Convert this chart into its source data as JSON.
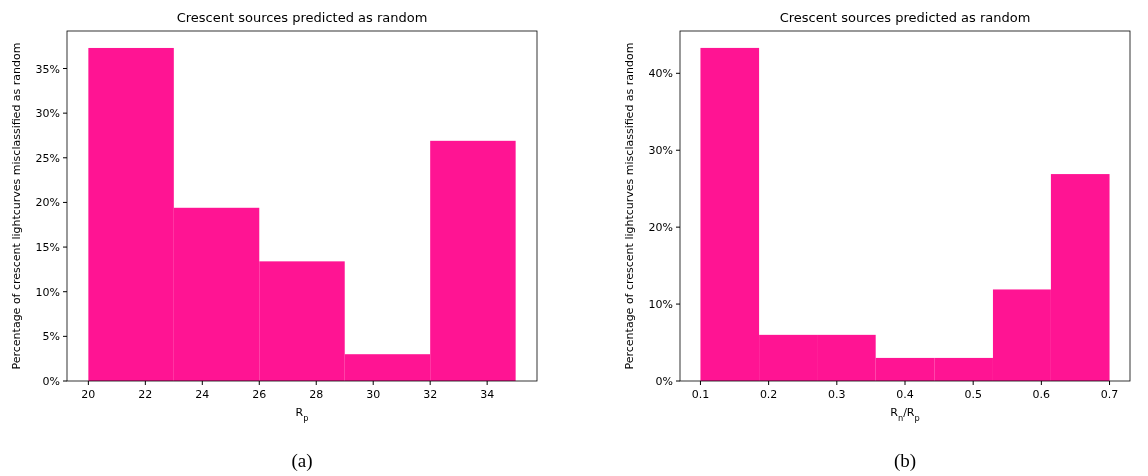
{
  "chart_data": [
    {
      "type": "histogram",
      "title": "Crescent sources predicted as random",
      "xlabel": "R$_{p}$",
      "ylabel": "Percentage of crescent lightcurves misclassified as random",
      "bins": [
        20,
        23,
        26,
        29,
        32,
        35
      ],
      "values": [
        37.3,
        19.4,
        13.4,
        3.0,
        26.9
      ],
      "color": "#ff1493",
      "xlim": [
        19.25,
        35.75
      ],
      "xticks": [
        20,
        22,
        24,
        26,
        28,
        30,
        32,
        34
      ],
      "ylim": [
        0,
        39.2
      ],
      "yticks": [
        {
          "value": 0,
          "label": "0%"
        },
        {
          "value": 5,
          "label": "5%"
        },
        {
          "value": 10,
          "label": "10%"
        },
        {
          "value": 15,
          "label": "15%"
        },
        {
          "value": 20,
          "label": "20%"
        },
        {
          "value": 25,
          "label": "25%"
        },
        {
          "value": 30,
          "label": "30%"
        },
        {
          "value": 35,
          "label": "35%"
        }
      ],
      "grid": false,
      "annotations": [
        "(a)"
      ]
    },
    {
      "type": "histogram",
      "title": "Crescent sources predicted as random",
      "xlabel": "R$_{n}$/R$_{p}$",
      "ylabel": "Percentage of crescent lightcurves misclassified as random",
      "bins": [
        0.1,
        0.186,
        0.271,
        0.357,
        0.443,
        0.529,
        0.614,
        0.7
      ],
      "values": [
        43.3,
        6.0,
        6.0,
        3.0,
        3.0,
        11.9,
        26.9
      ],
      "color": "#ff1493",
      "xlim": [
        0.07,
        0.73
      ],
      "xticks": [
        0.1,
        0.2,
        0.3,
        0.4,
        0.5,
        0.6,
        0.7
      ],
      "ylim": [
        0,
        45.5
      ],
      "yticks": [
        {
          "value": 0,
          "label": "0%"
        },
        {
          "value": 10,
          "label": "10%"
        },
        {
          "value": 20,
          "label": "20%"
        },
        {
          "value": 30,
          "label": "30%"
        },
        {
          "value": 40,
          "label": "40%"
        }
      ],
      "grid": false,
      "annotations": [
        "(b)"
      ]
    }
  ]
}
